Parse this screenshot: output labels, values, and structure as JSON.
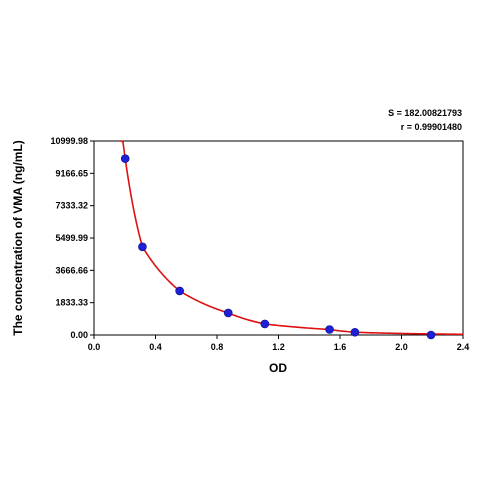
{
  "chart_data": {
    "type": "scatter",
    "title": "",
    "xlabel": "OD",
    "ylabel": "The concentration of VMA (ng/mL)",
    "xlim": [
      0.0,
      2.4
    ],
    "ylim": [
      0.0,
      10999.98
    ],
    "x_ticks": [
      0.0,
      0.4,
      0.8,
      1.2,
      1.6,
      2.0,
      2.4
    ],
    "x_tick_labels": [
      "0.0",
      "0.4",
      "0.8",
      "1.2",
      "1.6",
      "2.0",
      "2.4"
    ],
    "y_ticks": [
      0.0,
      1833.33,
      3666.66,
      5499.99,
      7333.32,
      9166.65,
      10999.98
    ],
    "y_tick_labels": [
      "0.00",
      "1833.33",
      "3666.66",
      "5499.99",
      "7333.32",
      "9166.65",
      "10999.98"
    ],
    "grid": false,
    "points": [
      {
        "x": 0.203,
        "y": 10000
      },
      {
        "x": 0.315,
        "y": 5000
      },
      {
        "x": 0.557,
        "y": 2500
      },
      {
        "x": 0.873,
        "y": 1250
      },
      {
        "x": 1.111,
        "y": 625
      },
      {
        "x": 1.532,
        "y": 312
      },
      {
        "x": 1.697,
        "y": 156
      },
      {
        "x": 2.192,
        "y": 0
      }
    ],
    "point_color": "#1f1fd6",
    "curve_color": "#e01010",
    "annotations": {
      "s": "S = 182.00821793",
      "r": "r = 0.99901480"
    }
  }
}
